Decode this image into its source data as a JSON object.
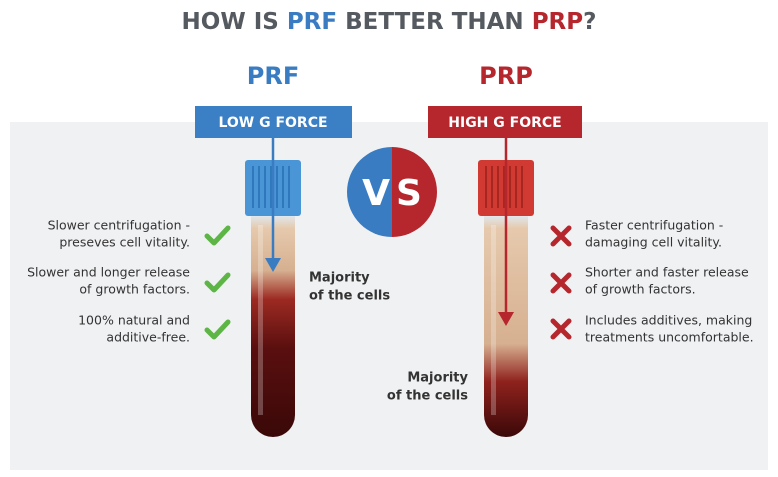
{
  "header": {
    "title": [
      "HOW IS ",
      "PRF",
      " BETTER THAN ",
      "PRP",
      "?"
    ]
  },
  "vs": [
    "V",
    "S"
  ],
  "left": {
    "label": "PRF",
    "force": "LOW G FORCE",
    "points": [
      [
        "Slower centrifugation -",
        "preseves cell vitality."
      ],
      [
        "Slower and longer release",
        "of growth factors."
      ],
      [
        "100% natural and",
        "additive-free."
      ]
    ],
    "majority": [
      "Majority",
      "of the cells"
    ]
  },
  "right": {
    "label": "PRP",
    "force": "HIGH G FORCE",
    "points": [
      [
        "Faster centrifugation -",
        "damaging cell vitality."
      ],
      [
        "Shorter and faster release",
        "of growth factors."
      ],
      [
        "Includes additives, making",
        "treatments uncomfortable."
      ]
    ],
    "majority": [
      "Majority",
      "of the cells"
    ]
  }
}
